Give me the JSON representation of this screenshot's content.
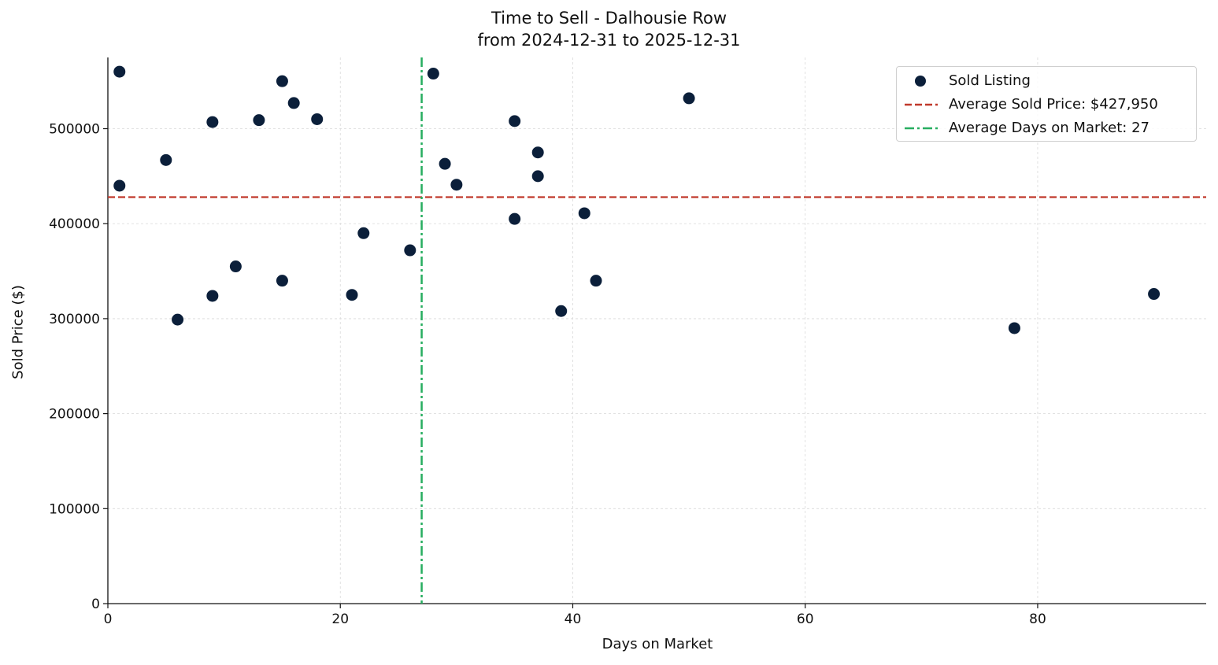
{
  "chart_data": {
    "type": "scatter",
    "title": "Time to Sell - Dalhousie Row",
    "subtitle": "from 2024-12-31 to 2025-12-31",
    "xlabel": "Days on Market",
    "ylabel": "Sold Price ($)",
    "xlim": [
      0,
      94.5
    ],
    "ylim": [
      0,
      575000
    ],
    "x_ticks": [
      0,
      20,
      40,
      60,
      80
    ],
    "y_ticks": [
      0,
      100000,
      200000,
      300000,
      400000,
      500000
    ],
    "x_tick_labels": [
      "0",
      "20",
      "40",
      "60",
      "80"
    ],
    "y_tick_labels": [
      "0",
      "100000",
      "200000",
      "300000",
      "400000",
      "500000"
    ],
    "grid": true,
    "legend_position": "top-right",
    "series": [
      {
        "name": "Sold Listing",
        "kind": "scatter",
        "color": "#0b1f3a",
        "points": [
          {
            "x": 1,
            "y": 560000
          },
          {
            "x": 1,
            "y": 440000
          },
          {
            "x": 5,
            "y": 467000
          },
          {
            "x": 6,
            "y": 299000
          },
          {
            "x": 9,
            "y": 507000
          },
          {
            "x": 9,
            "y": 324000
          },
          {
            "x": 11,
            "y": 355000
          },
          {
            "x": 13,
            "y": 509000
          },
          {
            "x": 15,
            "y": 550000
          },
          {
            "x": 15,
            "y": 340000
          },
          {
            "x": 16,
            "y": 527000
          },
          {
            "x": 18,
            "y": 510000
          },
          {
            "x": 21,
            "y": 325000
          },
          {
            "x": 22,
            "y": 390000
          },
          {
            "x": 26,
            "y": 372000
          },
          {
            "x": 28,
            "y": 558000
          },
          {
            "x": 29,
            "y": 463000
          },
          {
            "x": 30,
            "y": 441000
          },
          {
            "x": 35,
            "y": 508000
          },
          {
            "x": 35,
            "y": 405000
          },
          {
            "x": 37,
            "y": 475000
          },
          {
            "x": 37,
            "y": 450000
          },
          {
            "x": 39,
            "y": 308000
          },
          {
            "x": 41,
            "y": 411000
          },
          {
            "x": 42,
            "y": 340000
          },
          {
            "x": 50,
            "y": 532000
          },
          {
            "x": 78,
            "y": 290000
          },
          {
            "x": 90,
            "y": 326000
          }
        ]
      },
      {
        "name": "Average Sold Price: $427,950",
        "kind": "hline",
        "value": 427950,
        "color": "#c0392b",
        "style": "dashed"
      },
      {
        "name": "Average Days on Market: 27",
        "kind": "vline",
        "value": 27,
        "color": "#27ae60",
        "style": "dashdot"
      }
    ]
  }
}
